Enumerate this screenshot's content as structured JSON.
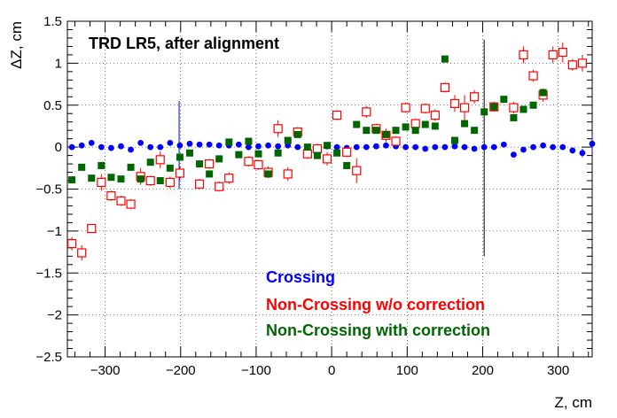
{
  "chart_data": {
    "type": "scatter",
    "title": "TRD LR5, after alignment",
    "xlabel": "Z, cm",
    "ylabel": "ΔZ, cm",
    "xlim": [
      -350,
      345
    ],
    "ylim": [
      -2.5,
      1.5
    ],
    "grid": true,
    "legend_placement": "bottom-center",
    "x_ticks": [
      -300,
      -200,
      -100,
      0,
      100,
      200,
      300
    ],
    "x_tick_labels": [
      "−300",
      "−200",
      "−100",
      "0",
      "100",
      "200",
      "300"
    ],
    "y_ticks": [
      -2.5,
      -2,
      -1.5,
      -1,
      -0.5,
      0,
      0.5,
      1,
      1.5
    ],
    "y_tick_labels": [
      "−2.5",
      "−2",
      "−1.5",
      "−1",
      "−0.5",
      "0",
      "0.5",
      "1",
      "1.5"
    ],
    "series": [
      {
        "name": "Crossing",
        "color": "#0000ff",
        "marker": "filled-circle",
        "points": [
          [
            -344,
            0.0,
            0.02
          ],
          [
            -331,
            0.02,
            0.02
          ],
          [
            -318,
            0.05,
            0.02
          ],
          [
            -305,
            0.0,
            0.02
          ],
          [
            -292,
            -0.01,
            0.02
          ],
          [
            -279,
            0.01,
            0.02
          ],
          [
            -266,
            -0.03,
            0.02
          ],
          [
            -253,
            0.05,
            0.02
          ],
          [
            -240,
            0.0,
            0.02
          ],
          [
            -227,
            0.0,
            0.02
          ],
          [
            -214,
            0.05,
            0.02
          ],
          [
            -201,
            0.02,
            0.02
          ],
          [
            -188,
            0.04,
            0.02
          ],
          [
            -175,
            0.03,
            0.02
          ],
          [
            -162,
            0.03,
            0.02
          ],
          [
            -149,
            0.02,
            0.02
          ],
          [
            -136,
            0.02,
            0.02
          ],
          [
            -123,
            0.03,
            0.02
          ],
          [
            -110,
            0.0,
            0.02
          ],
          [
            -97,
            0.01,
            0.02
          ],
          [
            -84,
            0.02,
            0.02
          ],
          [
            -71,
            0.01,
            0.02
          ],
          [
            -58,
            0.02,
            0.02
          ],
          [
            -45,
            0.0,
            0.02
          ],
          [
            -32,
            0.0,
            0.02
          ],
          [
            -19,
            0.0,
            0.02
          ],
          [
            -6,
            0.01,
            0.02
          ],
          [
            7,
            0.0,
            0.02
          ],
          [
            20,
            -0.01,
            0.02
          ],
          [
            33,
            0.0,
            0.02
          ],
          [
            46,
            0.0,
            0.02
          ],
          [
            59,
            0.01,
            0.02
          ],
          [
            72,
            0.02,
            0.02
          ],
          [
            85,
            0.01,
            0.02
          ],
          [
            98,
            0.0,
            0.02
          ],
          [
            111,
            0.0,
            0.02
          ],
          [
            124,
            -0.02,
            0.02
          ],
          [
            137,
            0.0,
            0.02
          ],
          [
            150,
            0.0,
            0.02
          ],
          [
            163,
            0.01,
            0.02
          ],
          [
            176,
            0.0,
            0.02
          ],
          [
            189,
            -0.02,
            0.02
          ],
          [
            202,
            0.0,
            0.02
          ],
          [
            215,
            0.0,
            0.02
          ],
          [
            228,
            0.03,
            0.02
          ],
          [
            241,
            -0.09,
            0.02
          ],
          [
            254,
            -0.03,
            0.02
          ],
          [
            267,
            0.0,
            0.02
          ],
          [
            280,
            0.02,
            0.02
          ],
          [
            293,
            0.0,
            0.02
          ],
          [
            306,
            0.0,
            0.02
          ],
          [
            319,
            -0.04,
            0.02
          ],
          [
            332,
            -0.07,
            0.05
          ],
          [
            345,
            0.04,
            0.1
          ]
        ]
      },
      {
        "name": "Non-Crossing w/o correction",
        "color": "#ff0000",
        "marker": "open-square",
        "points": [
          [
            -344,
            -1.15,
            0.08
          ],
          [
            -331,
            -1.26,
            0.09
          ],
          [
            -318,
            -0.97,
            0.05
          ],
          [
            -305,
            -0.42,
            0.1
          ],
          [
            -292,
            -0.58,
            0.06
          ],
          [
            -279,
            -0.64,
            0.06
          ],
          [
            -266,
            -0.68,
            0.06
          ],
          [
            -253,
            -0.35,
            0.1
          ],
          [
            -240,
            -0.4,
            0.06
          ],
          [
            -227,
            -0.15,
            0.1
          ],
          [
            -214,
            -0.42,
            0.07
          ],
          [
            -201,
            -0.31,
            0.08
          ],
          [
            -175,
            -0.44,
            0.06
          ],
          [
            -162,
            -0.2,
            0.06
          ],
          [
            -149,
            -0.47,
            0.06
          ],
          [
            -136,
            -0.37,
            0.07
          ],
          [
            -110,
            -0.17,
            0.06
          ],
          [
            -97,
            -0.21,
            0.06
          ],
          [
            -84,
            -0.3,
            0.07
          ],
          [
            -71,
            0.22,
            0.1
          ],
          [
            -58,
            -0.32,
            0.08
          ],
          [
            -45,
            0.18,
            0.06
          ],
          [
            -32,
            -0.08,
            0.06
          ],
          [
            -19,
            -0.02,
            0.06
          ],
          [
            -6,
            -0.14,
            0.08
          ],
          [
            7,
            0.38,
            0.06
          ],
          [
            20,
            -0.06,
            0.06
          ],
          [
            33,
            -0.28,
            0.15
          ],
          [
            46,
            0.42,
            0.07
          ],
          [
            59,
            0.22,
            0.06
          ],
          [
            72,
            0.14,
            0.08
          ],
          [
            85,
            0.07,
            0.06
          ],
          [
            98,
            0.47,
            0.06
          ],
          [
            111,
            0.28,
            0.06
          ],
          [
            124,
            0.46,
            0.06
          ],
          [
            137,
            0.38,
            0.07
          ],
          [
            150,
            0.71,
            0.06
          ],
          [
            163,
            0.52,
            0.1
          ],
          [
            176,
            0.47,
            0.15
          ],
          [
            189,
            0.6,
            0.08
          ],
          [
            215,
            0.48,
            0.06
          ],
          [
            241,
            0.47,
            0.07
          ],
          [
            254,
            1.1,
            0.1
          ],
          [
            267,
            0.85,
            0.07
          ],
          [
            280,
            0.62,
            0.08
          ],
          [
            293,
            1.1,
            0.1
          ],
          [
            306,
            1.13,
            0.12
          ],
          [
            319,
            0.98,
            0.07
          ],
          [
            332,
            1.0,
            0.1
          ]
        ]
      },
      {
        "name": "Non-Crossing with correction",
        "color": "#006600",
        "marker": "filled-square",
        "points": [
          [
            -344,
            -0.39,
            0.03
          ],
          [
            -331,
            -0.24,
            0.03
          ],
          [
            -318,
            -0.37,
            0.03
          ],
          [
            -305,
            -0.22,
            0.03
          ],
          [
            -292,
            -0.36,
            0.03
          ],
          [
            -279,
            -0.38,
            0.03
          ],
          [
            -266,
            -0.24,
            0.03
          ],
          [
            -253,
            -0.38,
            0.03
          ],
          [
            -240,
            -0.18,
            0.03
          ],
          [
            -227,
            -0.4,
            0.03
          ],
          [
            -214,
            -0.25,
            0.03
          ],
          [
            -201,
            -0.12,
            0.03
          ],
          [
            -188,
            -0.07,
            0.03
          ],
          [
            -175,
            -0.2,
            0.03
          ],
          [
            -162,
            -0.32,
            0.03
          ],
          [
            -149,
            -0.14,
            0.03
          ],
          [
            -136,
            0.06,
            0.03
          ],
          [
            -123,
            -0.09,
            0.03
          ],
          [
            -110,
            0.07,
            0.03
          ],
          [
            -97,
            -0.08,
            0.03
          ],
          [
            -84,
            -0.32,
            0.03
          ],
          [
            -71,
            -0.07,
            0.03
          ],
          [
            -58,
            0.08,
            0.03
          ],
          [
            -45,
            0.15,
            0.03
          ],
          [
            -32,
            0.0,
            0.03
          ],
          [
            -19,
            -0.1,
            0.03
          ],
          [
            -6,
            0.02,
            0.03
          ],
          [
            7,
            -0.07,
            0.03
          ],
          [
            20,
            -0.22,
            0.03
          ],
          [
            33,
            0.27,
            0.03
          ],
          [
            46,
            0.2,
            0.03
          ],
          [
            59,
            0.2,
            0.03
          ],
          [
            72,
            0.15,
            0.03
          ],
          [
            85,
            0.2,
            0.03
          ],
          [
            98,
            0.24,
            0.03
          ],
          [
            111,
            0.2,
            0.03
          ],
          [
            124,
            0.27,
            0.03
          ],
          [
            137,
            0.25,
            0.03
          ],
          [
            150,
            1.05,
            0.03
          ],
          [
            163,
            0.08,
            0.03
          ],
          [
            176,
            0.28,
            0.03
          ],
          [
            189,
            0.2,
            0.03
          ],
          [
            202,
            0.42,
            0.03
          ],
          [
            215,
            0.48,
            0.03
          ],
          [
            228,
            0.57,
            0.03
          ],
          [
            241,
            0.35,
            0.03
          ],
          [
            254,
            0.45,
            0.03
          ],
          [
            267,
            0.5,
            0.03
          ],
          [
            280,
            0.65,
            0.03
          ]
        ]
      }
    ]
  }
}
